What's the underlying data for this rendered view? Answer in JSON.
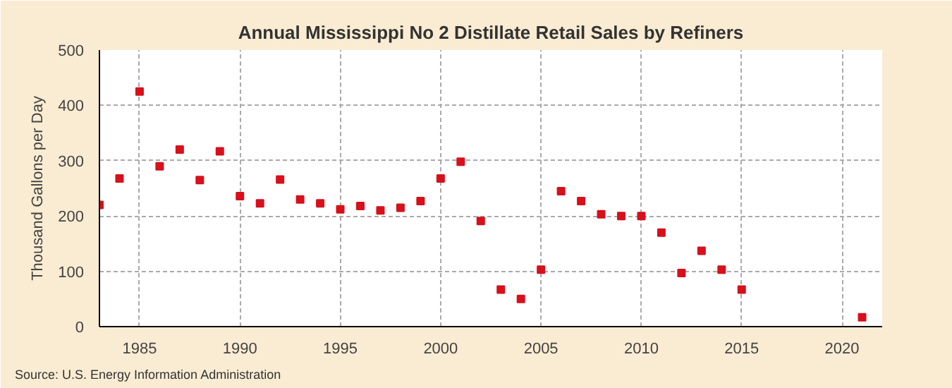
{
  "chart_data": {
    "type": "scatter",
    "title": "Annual Mississippi No 2 Distillate Retail Sales by Refiners",
    "ylabel": "Thousand Gallons per Day",
    "annotations": [
      "Source: U.S. Energy Information Administration"
    ],
    "x": [
      1983,
      1984,
      1985,
      1986,
      1987,
      1988,
      1989,
      1990,
      1991,
      1992,
      1993,
      1994,
      1995,
      1996,
      1997,
      1998,
      1999,
      2000,
      2001,
      2002,
      2003,
      2004,
      2005,
      2006,
      2007,
      2008,
      2009,
      2010,
      2011,
      2012,
      2013,
      2014,
      2015,
      2021
    ],
    "series": [
      {
        "color": "#d7101c",
        "values": [
          220,
          268,
          425,
          290,
          320,
          265,
          317,
          236,
          223,
          266,
          230,
          223,
          212,
          218,
          210,
          215,
          227,
          268,
          298,
          191,
          67,
          50,
          103,
          245,
          227,
          203,
          200,
          200,
          170,
          97,
          137,
          103,
          67,
          17
        ]
      }
    ],
    "xlim": [
      1983,
      2022
    ],
    "xticks": [
      1985,
      1990,
      1995,
      2000,
      2005,
      2010,
      2015,
      2020
    ],
    "ylim": [
      0,
      500
    ],
    "yticks": [
      0,
      100,
      200,
      300,
      400,
      500
    ],
    "grid": true,
    "marker": "square"
  }
}
